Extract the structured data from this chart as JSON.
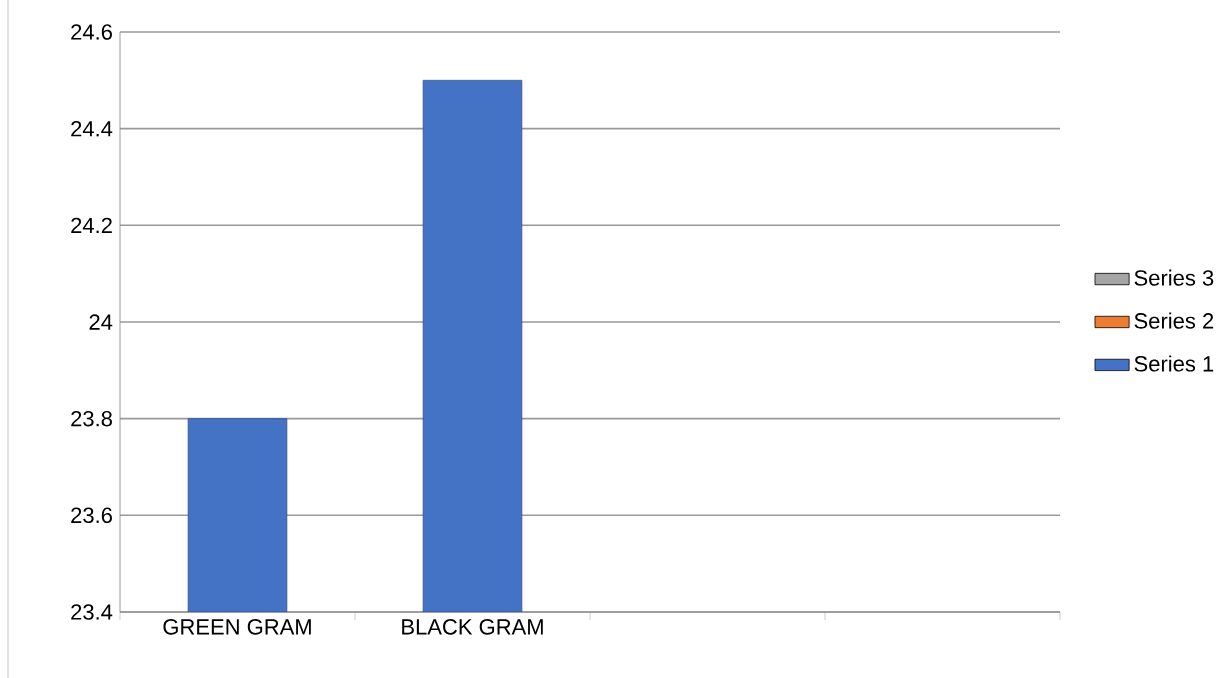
{
  "chart_data": {
    "type": "bar",
    "categories": [
      "GREEN GRAM",
      "BLACK GRAM",
      null,
      null
    ],
    "series": [
      {
        "name": "Series 1",
        "color": "#4472c4",
        "values": [
          23.8,
          24.5,
          null,
          null
        ]
      },
      {
        "name": "Series 2",
        "color": "#ed7d31",
        "values": [
          null,
          null,
          null,
          null
        ]
      },
      {
        "name": "Series 3",
        "color": "#a5a5a5",
        "values": [
          null,
          null,
          null,
          null
        ]
      }
    ],
    "ylim": [
      23.4,
      24.6
    ],
    "yticks": [
      23.4,
      23.6,
      23.8,
      24,
      24.2,
      24.4,
      24.6
    ],
    "grid": "y",
    "legend": "right"
  }
}
